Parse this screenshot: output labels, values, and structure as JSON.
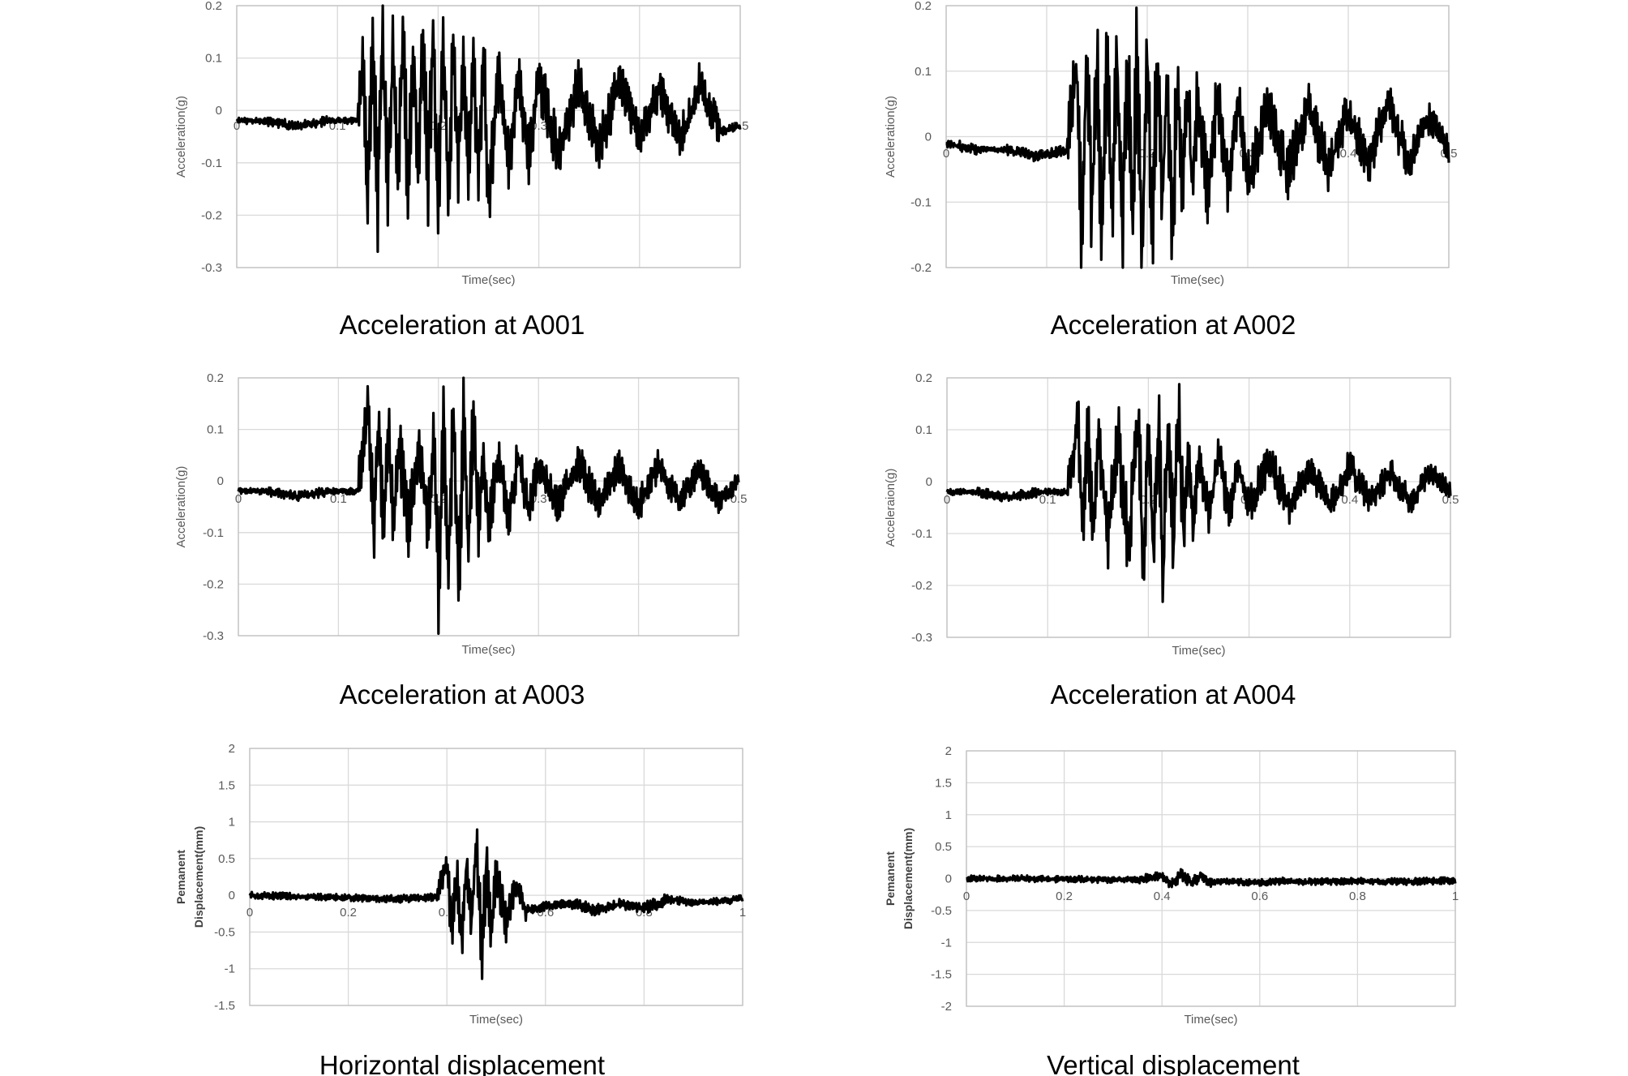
{
  "figure": {
    "charts": [
      {
        "caption": "Acceleration at A001",
        "ylabel": "Acceleration(g)",
        "xlabel": "Time(sec)",
        "yticks": [
          "0.2",
          "0.1",
          "0",
          "-0.1",
          "-0.2",
          "-0.3"
        ],
        "xticks": [
          "0",
          "0.1",
          "0.2",
          "0.3",
          "0.4",
          "0.5"
        ]
      },
      {
        "caption": "Acceleration at A002",
        "ylabel": "Acceleration(g)",
        "xlabel": "Time(sec)",
        "yticks": [
          "0.2",
          "0.1",
          "0",
          "-0.1",
          "-0.2"
        ],
        "xticks": [
          "0",
          "0.1",
          "0.2",
          "0.3",
          "0.4",
          "0.5"
        ]
      },
      {
        "caption": "Acceleration at A003",
        "ylabel": "Acceleration(g)",
        "xlabel": "Time(sec)",
        "yticks": [
          "0.2",
          "0.1",
          "0",
          "-0.1",
          "-0.2",
          "-0.3"
        ],
        "xticks": [
          "0",
          "0.1",
          "0.2",
          "0.3",
          "0.4",
          "0.5"
        ]
      },
      {
        "caption": "Acceleration at A004",
        "ylabel": "Acceleraion(g)",
        "xlabel": "Time(sec)",
        "yticks": [
          "0.2",
          "0.1",
          "0",
          "-0.1",
          "-0.2",
          "-0.3"
        ],
        "xticks": [
          "0",
          "0.1",
          "0.2",
          "0.3",
          "0.4",
          "0.5"
        ]
      },
      {
        "caption": "Horizontal displacement",
        "ylabel_line1": "Pemanent",
        "ylabel_line2": "Displacement(mm)",
        "xlabel": "Time(sec)",
        "yticks": [
          "2",
          "1.5",
          "1",
          "0.5",
          "0",
          "-0.5",
          "-1",
          "-1.5"
        ],
        "xticks": [
          "0",
          "0.2",
          "0.4",
          "0.6",
          "0.8",
          "1"
        ]
      },
      {
        "caption": "Vertical displacement",
        "ylabel_line1": "Pemanent",
        "ylabel_line2": "Displacement(mm)",
        "xlabel": "Time(sec)",
        "yticks": [
          "2",
          "1.5",
          "1",
          "0.5",
          "0",
          "-0.5",
          "-1",
          "-1.5",
          "-2"
        ],
        "xticks": [
          "0",
          "0.2",
          "0.4",
          "0.6",
          "0.8",
          "1"
        ]
      }
    ]
  },
  "chart_data": [
    {
      "type": "line",
      "xlabel": "Time(sec)",
      "ylabel": "Acceleration(g)",
      "xlim": [
        0,
        0.5
      ],
      "ylim": [
        -0.3,
        0.2
      ],
      "grid": true,
      "x": [
        0,
        0.03,
        0.06,
        0.09,
        0.12,
        0.125,
        0.13,
        0.135,
        0.14,
        0.145,
        0.15,
        0.155,
        0.16,
        0.165,
        0.17,
        0.175,
        0.18,
        0.185,
        0.19,
        0.195,
        0.2,
        0.205,
        0.21,
        0.215,
        0.22,
        0.225,
        0.23,
        0.235,
        0.24,
        0.245,
        0.25,
        0.26,
        0.27,
        0.28,
        0.29,
        0.3,
        0.32,
        0.34,
        0.36,
        0.38,
        0.4,
        0.42,
        0.44,
        0.46,
        0.48,
        0.5
      ],
      "y": [
        -0.02,
        -0.02,
        -0.03,
        -0.02,
        -0.02,
        0.1,
        -0.19,
        0.14,
        -0.16,
        0.13,
        -0.15,
        0.1,
        -0.12,
        0.15,
        -0.14,
        0.12,
        -0.11,
        0.14,
        -0.13,
        0.15,
        -0.19,
        0.14,
        -0.17,
        0.13,
        -0.12,
        0.1,
        -0.1,
        0.09,
        -0.12,
        0.11,
        -0.16,
        0.08,
        -0.1,
        0.06,
        -0.09,
        0.06,
        -0.08,
        0.05,
        -0.07,
        0.06,
        -0.05,
        0.04,
        -0.06,
        0.05,
        -0.04,
        -0.03
      ]
    },
    {
      "type": "line",
      "xlabel": "Time(sec)",
      "ylabel": "Acceleration(g)",
      "xlim": [
        0,
        0.5
      ],
      "ylim": [
        -0.2,
        0.2
      ],
      "grid": true,
      "x": [
        0,
        0.03,
        0.06,
        0.09,
        0.12,
        0.13,
        0.135,
        0.14,
        0.145,
        0.15,
        0.155,
        0.16,
        0.165,
        0.17,
        0.175,
        0.18,
        0.185,
        0.19,
        0.195,
        0.2,
        0.205,
        0.21,
        0.215,
        0.22,
        0.225,
        0.23,
        0.235,
        0.24,
        0.245,
        0.25,
        0.26,
        0.27,
        0.28,
        0.29,
        0.3,
        0.32,
        0.34,
        0.36,
        0.38,
        0.4,
        0.42,
        0.44,
        0.46,
        0.48,
        0.5
      ],
      "y": [
        -0.01,
        -0.02,
        -0.02,
        -0.03,
        -0.02,
        0.12,
        -0.18,
        0.14,
        -0.12,
        0.13,
        -0.15,
        0.12,
        -0.1,
        0.13,
        -0.16,
        0.14,
        -0.13,
        0.14,
        -0.18,
        0.13,
        -0.14,
        0.12,
        -0.1,
        0.1,
        -0.15,
        0.09,
        -0.1,
        0.08,
        -0.09,
        0.07,
        -0.08,
        0.06,
        -0.07,
        0.06,
        -0.07,
        0.05,
        -0.06,
        0.05,
        -0.05,
        0.04,
        -0.04,
        0.05,
        -0.04,
        0.03,
        -0.02
      ]
    },
    {
      "type": "line",
      "xlabel": "Time(sec)",
      "ylabel": "Acceleration(g)",
      "xlim": [
        0,
        0.5
      ],
      "ylim": [
        -0.3,
        0.2
      ],
      "grid": true,
      "x": [
        0,
        0.03,
        0.06,
        0.09,
        0.12,
        0.13,
        0.135,
        0.14,
        0.145,
        0.15,
        0.155,
        0.16,
        0.17,
        0.18,
        0.19,
        0.195,
        0.2,
        0.205,
        0.21,
        0.215,
        0.22,
        0.225,
        0.23,
        0.235,
        0.24,
        0.245,
        0.25,
        0.26,
        0.27,
        0.28,
        0.29,
        0.3,
        0.32,
        0.34,
        0.36,
        0.38,
        0.4,
        0.42,
        0.44,
        0.46,
        0.48,
        0.5
      ],
      "y": [
        -0.02,
        -0.02,
        -0.03,
        -0.02,
        -0.02,
        0.14,
        -0.1,
        0.12,
        -0.09,
        0.11,
        -0.11,
        0.08,
        -0.09,
        0.07,
        -0.09,
        0.1,
        -0.19,
        0.12,
        -0.15,
        0.12,
        -0.19,
        0.11,
        -0.13,
        0.13,
        -0.08,
        0.05,
        -0.09,
        0.05,
        -0.07,
        0.05,
        -0.06,
        0.03,
        -0.05,
        0.04,
        -0.05,
        0.03,
        -0.05,
        0.03,
        -0.04,
        0.02,
        -0.04,
        0.0
      ]
    },
    {
      "type": "line",
      "xlabel": "Time(sec)",
      "ylabel": "Acceleraion(g)",
      "xlim": [
        0,
        0.5
      ],
      "ylim": [
        -0.3,
        0.2
      ],
      "grid": true,
      "x": [
        0,
        0.03,
        0.06,
        0.09,
        0.12,
        0.13,
        0.135,
        0.14,
        0.145,
        0.15,
        0.16,
        0.17,
        0.18,
        0.19,
        0.195,
        0.2,
        0.205,
        0.21,
        0.215,
        0.22,
        0.225,
        0.23,
        0.235,
        0.24,
        0.245,
        0.25,
        0.26,
        0.27,
        0.28,
        0.29,
        0.3,
        0.32,
        0.34,
        0.36,
        0.38,
        0.4,
        0.42,
        0.44,
        0.46,
        0.48,
        0.5
      ],
      "y": [
        -0.02,
        -0.02,
        -0.03,
        -0.02,
        -0.02,
        0.12,
        -0.09,
        0.1,
        -0.11,
        0.08,
        -0.1,
        0.09,
        -0.12,
        0.11,
        -0.17,
        0.12,
        -0.14,
        0.1,
        -0.19,
        0.14,
        -0.13,
        0.14,
        -0.1,
        0.07,
        -0.09,
        0.05,
        -0.06,
        0.05,
        -0.06,
        0.03,
        -0.05,
        0.04,
        -0.05,
        0.03,
        -0.05,
        0.03,
        -0.04,
        0.02,
        -0.04,
        0.02,
        -0.02
      ]
    },
    {
      "type": "line",
      "xlabel": "Time(sec)",
      "ylabel": "Pemanent Displacement(mm)",
      "xlim": [
        0,
        1
      ],
      "ylim": [
        -1.5,
        2
      ],
      "grid": true,
      "x": [
        0,
        0.1,
        0.2,
        0.3,
        0.38,
        0.4,
        0.41,
        0.42,
        0.43,
        0.44,
        0.45,
        0.46,
        0.47,
        0.48,
        0.49,
        0.5,
        0.52,
        0.54,
        0.56,
        0.6,
        0.65,
        0.7,
        0.75,
        0.8,
        0.85,
        0.9,
        0.95,
        1.0
      ],
      "y": [
        0,
        -0.02,
        -0.03,
        -0.05,
        -0.02,
        0.42,
        -0.5,
        0.3,
        -0.55,
        0.45,
        -0.4,
        0.78,
        -0.9,
        0.42,
        -0.6,
        0.3,
        -0.4,
        0.15,
        -0.2,
        -0.15,
        -0.1,
        -0.2,
        -0.12,
        -0.18,
        -0.05,
        -0.1,
        -0.08,
        -0.05
      ]
    },
    {
      "type": "line",
      "xlabel": "Time(sec)",
      "ylabel": "Pemanent Displacement(mm)",
      "xlim": [
        0,
        1
      ],
      "ylim": [
        -2,
        2
      ],
      "grid": true,
      "x": [
        0,
        0.1,
        0.2,
        0.3,
        0.35,
        0.4,
        0.42,
        0.44,
        0.46,
        0.48,
        0.5,
        0.55,
        0.6,
        0.65,
        0.7,
        0.8,
        0.9,
        1.0
      ],
      "y": [
        0,
        0,
        -0.01,
        -0.02,
        -0.02,
        0.05,
        -0.08,
        0.06,
        -0.07,
        0.04,
        -0.05,
        -0.05,
        -0.06,
        -0.04,
        -0.05,
        -0.04,
        -0.05,
        -0.03
      ]
    }
  ]
}
